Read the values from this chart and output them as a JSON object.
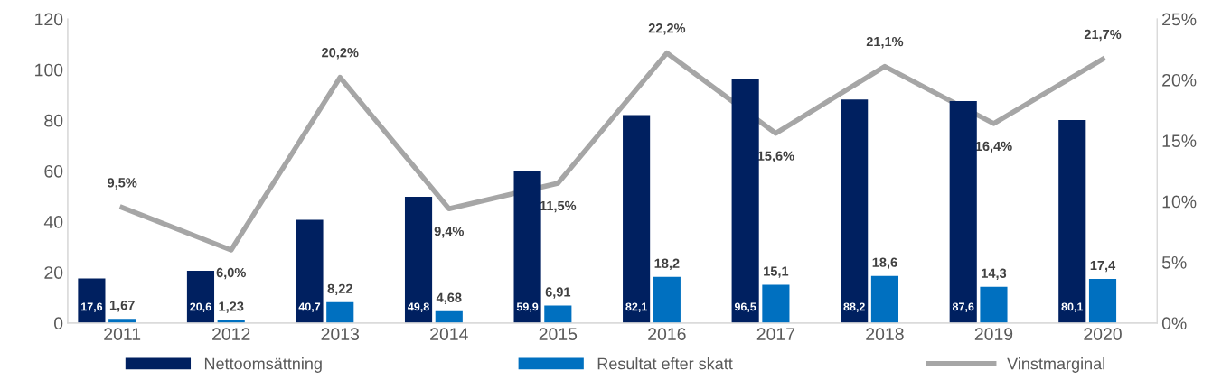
{
  "chart_data": {
    "type": "bar",
    "categories": [
      "2011",
      "2012",
      "2013",
      "2014",
      "2015",
      "2016",
      "2017",
      "2018",
      "2019",
      "2020"
    ],
    "series": [
      {
        "name": "Nettoomsättning",
        "color": "#002060",
        "values": [
          17.6,
          20.6,
          40.7,
          49.8,
          59.9,
          82.1,
          96.5,
          88.2,
          87.6,
          80.1
        ],
        "value_labels": [
          "17,6",
          "20,6",
          "40,7",
          "49,8",
          "59,9",
          "82,1",
          "96,5",
          "88,2",
          "87,6",
          "80,1"
        ]
      },
      {
        "name": "Resultat efter skatt",
        "color": "#0070c0",
        "values": [
          1.67,
          1.23,
          8.22,
          4.68,
          6.91,
          18.2,
          15.1,
          18.6,
          14.3,
          17.4
        ],
        "value_labels": [
          "1,67",
          "1,23",
          "8,22",
          "4,68",
          "6,91",
          "18,2",
          "15,1",
          "18,6",
          "14,3",
          "17,4"
        ]
      },
      {
        "name": "Vinstmarginal",
        "type": "line",
        "axis": "y2",
        "color": "#a6a6a6",
        "values": [
          9.5,
          6.0,
          20.2,
          9.4,
          11.5,
          22.2,
          15.6,
          21.1,
          16.4,
          21.7
        ],
        "value_labels": [
          "9,5%",
          "6,0%",
          "20,2%",
          "9,4%",
          "11,5%",
          "22,2%",
          "15,6%",
          "21,1%",
          "16,4%",
          "21,7%"
        ]
      }
    ],
    "ylim": [
      0,
      120
    ],
    "yticks": [
      0,
      20,
      40,
      60,
      80,
      100,
      120
    ],
    "y2lim": [
      0,
      25
    ],
    "y2ticks": [
      {
        "value": 0,
        "label": "0%"
      },
      {
        "value": 5,
        "label": "5%"
      },
      {
        "value": 10,
        "label": "10%"
      },
      {
        "value": 15,
        "label": "15%"
      },
      {
        "value": 20,
        "label": "20%"
      },
      {
        "value": 25,
        "label": "25%"
      }
    ],
    "grid": false,
    "legend": "bottom",
    "marker": "none"
  }
}
